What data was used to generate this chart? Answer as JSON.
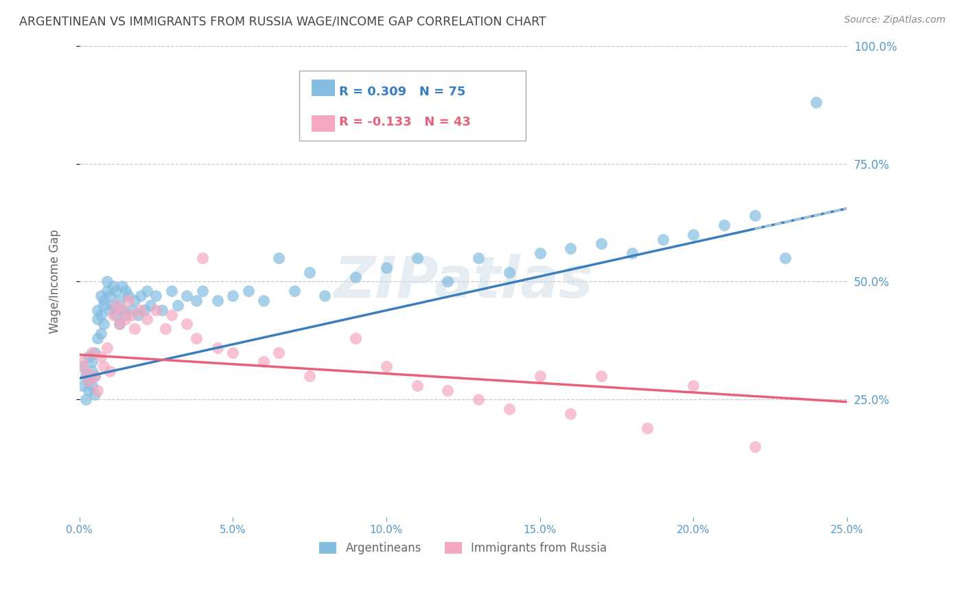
{
  "title": "ARGENTINEAN VS IMMIGRANTS FROM RUSSIA WAGE/INCOME GAP CORRELATION CHART",
  "source": "Source: ZipAtlas.com",
  "ylabel": "Wage/Income Gap",
  "xlim": [
    0.0,
    0.25
  ],
  "ylim": [
    0.0,
    1.0
  ],
  "xticks": [
    0.0,
    0.05,
    0.1,
    0.15,
    0.2,
    0.25
  ],
  "yticks": [
    0.25,
    0.5,
    0.75,
    1.0
  ],
  "ytick_labels": [
    "25.0%",
    "50.0%",
    "75.0%",
    "100.0%"
  ],
  "xtick_labels": [
    "0.0%",
    "5.0%",
    "10.0%",
    "15.0%",
    "20.0%",
    "25.0%"
  ],
  "blue_color": "#85bde0",
  "pink_color": "#f4a8bf",
  "blue_line_color": "#3a7dbf",
  "pink_line_color": "#e8607a",
  "blue_dash_color": "#a8c8e0",
  "blue_R": 0.309,
  "blue_N": 75,
  "pink_R": -0.133,
  "pink_N": 43,
  "blue_scatter_x": [
    0.001,
    0.001,
    0.002,
    0.002,
    0.003,
    0.003,
    0.003,
    0.004,
    0.004,
    0.004,
    0.005,
    0.005,
    0.005,
    0.006,
    0.006,
    0.006,
    0.007,
    0.007,
    0.007,
    0.008,
    0.008,
    0.008,
    0.009,
    0.009,
    0.01,
    0.01,
    0.011,
    0.011,
    0.012,
    0.012,
    0.013,
    0.013,
    0.014,
    0.014,
    0.015,
    0.015,
    0.016,
    0.017,
    0.018,
    0.019,
    0.02,
    0.021,
    0.022,
    0.023,
    0.025,
    0.027,
    0.03,
    0.032,
    0.035,
    0.038,
    0.04,
    0.045,
    0.05,
    0.055,
    0.06,
    0.065,
    0.07,
    0.075,
    0.08,
    0.09,
    0.1,
    0.11,
    0.12,
    0.13,
    0.14,
    0.15,
    0.16,
    0.17,
    0.18,
    0.19,
    0.2,
    0.21,
    0.22,
    0.23,
    0.24
  ],
  "blue_scatter_y": [
    0.32,
    0.28,
    0.3,
    0.25,
    0.34,
    0.29,
    0.27,
    0.33,
    0.28,
    0.31,
    0.35,
    0.3,
    0.26,
    0.42,
    0.44,
    0.38,
    0.47,
    0.43,
    0.39,
    0.46,
    0.45,
    0.41,
    0.5,
    0.48,
    0.47,
    0.44,
    0.49,
    0.45,
    0.48,
    0.43,
    0.46,
    0.41,
    0.49,
    0.44,
    0.48,
    0.43,
    0.47,
    0.44,
    0.46,
    0.43,
    0.47,
    0.44,
    0.48,
    0.45,
    0.47,
    0.44,
    0.48,
    0.45,
    0.47,
    0.46,
    0.48,
    0.46,
    0.47,
    0.48,
    0.46,
    0.55,
    0.48,
    0.52,
    0.47,
    0.51,
    0.53,
    0.55,
    0.5,
    0.55,
    0.52,
    0.56,
    0.57,
    0.58,
    0.56,
    0.59,
    0.6,
    0.62,
    0.64,
    0.55,
    0.88
  ],
  "pink_scatter_x": [
    0.001,
    0.002,
    0.003,
    0.004,
    0.005,
    0.006,
    0.007,
    0.008,
    0.009,
    0.01,
    0.011,
    0.012,
    0.013,
    0.014,
    0.015,
    0.016,
    0.017,
    0.018,
    0.02,
    0.022,
    0.025,
    0.028,
    0.03,
    0.035,
    0.038,
    0.04,
    0.045,
    0.05,
    0.06,
    0.065,
    0.075,
    0.09,
    0.1,
    0.11,
    0.12,
    0.13,
    0.14,
    0.15,
    0.16,
    0.17,
    0.185,
    0.2,
    0.22
  ],
  "pink_scatter_y": [
    0.33,
    0.31,
    0.29,
    0.35,
    0.3,
    0.27,
    0.34,
    0.32,
    0.36,
    0.31,
    0.43,
    0.45,
    0.41,
    0.44,
    0.42,
    0.46,
    0.43,
    0.4,
    0.44,
    0.42,
    0.44,
    0.4,
    0.43,
    0.41,
    0.38,
    0.55,
    0.36,
    0.35,
    0.33,
    0.35,
    0.3,
    0.38,
    0.32,
    0.28,
    0.27,
    0.25,
    0.23,
    0.3,
    0.22,
    0.3,
    0.19,
    0.28,
    0.15
  ],
  "watermark_text": "ZIPatlas",
  "grid_color": "#c8c8c8",
  "bg_color": "#ffffff",
  "title_color": "#444444",
  "axis_label_color": "#666666",
  "tick_color": "#5599cc",
  "right_tick_color": "#5599cc"
}
